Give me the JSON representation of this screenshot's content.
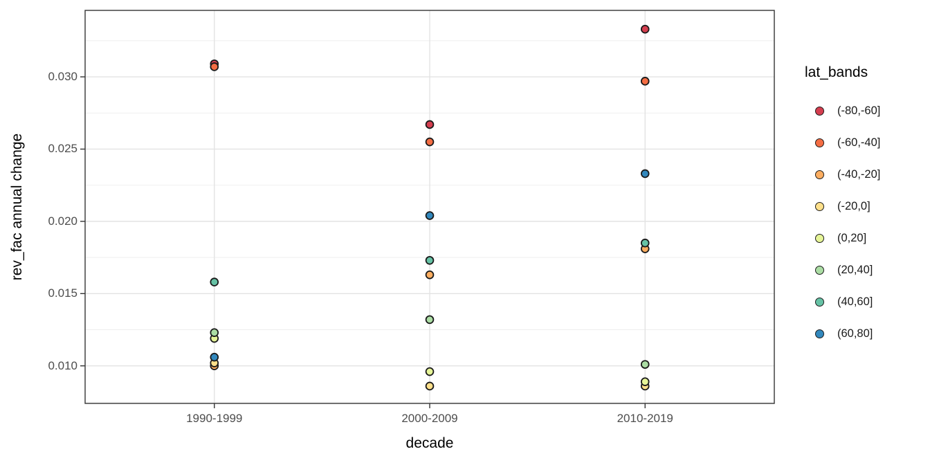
{
  "chart_data": {
    "type": "scatter",
    "title": "",
    "xlabel": "decade",
    "ylabel": "rev_fac annual change",
    "legend_title": "lat_bands",
    "legend_position": "right",
    "grid": true,
    "categories": [
      "1990-1999",
      "2000-2009",
      "2010-2019"
    ],
    "ylim": [
      0.0074,
      0.0346
    ],
    "yticks_major": [
      0.01,
      0.015,
      0.02,
      0.025,
      0.03
    ],
    "ytick_labels": [
      "0.010",
      "0.015",
      "0.020",
      "0.025",
      "0.030"
    ],
    "yticks_minor": [
      0.0075,
      0.0125,
      0.0175,
      0.0225,
      0.0275,
      0.0325
    ],
    "series": [
      {
        "name": "(-80,-60]",
        "color": "#D53E4F",
        "values": [
          0.0309,
          0.0267,
          0.0333
        ]
      },
      {
        "name": "(-60,-40]",
        "color": "#F46D43",
        "values": [
          0.0307,
          0.0255,
          0.0297
        ]
      },
      {
        "name": "(-40,-20]",
        "color": "#FDAE61",
        "values": [
          0.01,
          0.0163,
          0.0181
        ]
      },
      {
        "name": "(-20,0]",
        "color": "#FEE08B",
        "values": [
          0.0102,
          0.0086,
          0.0086
        ]
      },
      {
        "name": "(0,20]",
        "color": "#E6F598",
        "values": [
          0.0119,
          0.0096,
          0.0089
        ]
      },
      {
        "name": "(20,40]",
        "color": "#ABDDA4",
        "values": [
          0.0123,
          0.0132,
          0.0101
        ]
      },
      {
        "name": "(40,60]",
        "color": "#66C2A5",
        "values": [
          0.0158,
          0.0173,
          0.0185
        ]
      },
      {
        "name": "(60,80]",
        "color": "#3288BD",
        "values": [
          0.0106,
          0.0204,
          0.0233
        ]
      }
    ],
    "style": {
      "point_stroke": "#1a1a1a",
      "panel_border": "#343434",
      "grid_major": "#e3e3e3",
      "grid_minor": "#ededed",
      "tick_color": "#333333",
      "tick_label_color": "#4d4d4d"
    }
  }
}
